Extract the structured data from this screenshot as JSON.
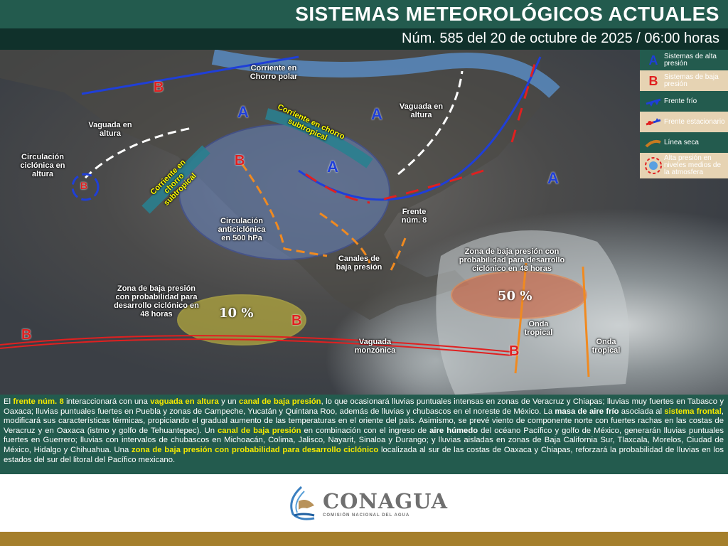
{
  "header": {
    "title": "SISTEMAS METEOROLÓGICOS ACTUALES",
    "subtitle": "Núm. 585 del 20 de octubre de 2025 / 06:00 horas"
  },
  "legend": [
    {
      "symbol": "A",
      "label": "Sistemas de alta presión",
      "color": "#1f3fd8"
    },
    {
      "symbol": "B",
      "label": "Sistemas de baja presión",
      "color": "#e02020"
    },
    {
      "symbol": "frente-frio-icon",
      "label": "Frente frío"
    },
    {
      "symbol": "frente-estacionario-icon",
      "label": "Frente estacionario"
    },
    {
      "symbol": "linea-seca-icon",
      "label": "Línea seca"
    },
    {
      "symbol": "A",
      "label": "Alta presión en niveles medios de la atmosfera"
    }
  ],
  "map": {
    "labels": {
      "chorro_polar": "Corriente en Chorro polar",
      "vaguada_w": "Vaguada en altura",
      "vaguada_e": "Vaguada en altura",
      "circ_ciclonica": "Circulación ciclónica en altura",
      "chorro_sub_w": "Corriente en chorro subtropical",
      "chorro_sub_e": "Corriente en chorro subtropical",
      "anticiclonica": "Circulación anticiclónica en 500 hPa",
      "frente": "Frente núm. 8",
      "canales": "Canales de baja presión",
      "zona_w": "Zona de baja presión con probabilidad para desarrollo ciclónico en 48 horas",
      "zona_e": "Zona de baja presión con probabilidad para desarrollo ciclónico en 48 horas",
      "pct_w": "10 %",
      "pct_e": "50 %",
      "vaguada_monz": "Vaguada monzónica",
      "onda1": "Onda tropical",
      "onda2": "Onda tropical",
      "A": "A",
      "B": "B"
    }
  },
  "bulletin": {
    "p1": "El ",
    "h1": "frente núm. 8",
    "p2": " interaccionará con una ",
    "h2": "vaguada en altura",
    "p3": " y un ",
    "h3": "canal de baja presión",
    "p4": ", lo que ocasionará lluvias puntuales intensas en zonas de Veracruz y Chiapas; lluvias muy fuertes en Tabasco y Oaxaca; lluvias puntuales fuertes en Puebla y zonas de Campeche, Yucatán y Quintana Roo, además de lluvias y chubascos en el noreste de México. La ",
    "s1": "masa de aire frío",
    "p5": " asociada al ",
    "h4": "sistema frontal",
    "p6": ", modificará sus características térmicas, propiciando el gradual aumento de las temperaturas en el oriente del país. Asimismo, se prevé viento de componente norte con fuertes rachas en las costas de Veracruz y en Oaxaca (istmo y golfo de Tehuantepec). Un ",
    "h5": "canal de baja presión",
    "p7": " en combinación con el ingreso de ",
    "s2": "aire húmedo",
    "p8": " del océano Pacífico y golfo de México, generarán lluvias puntuales fuertes en Guerrero; lluvias con intervalos de chubascos en Michoacán, Colima, Jalisco, Nayarit, Sinaloa y Durango; y lluvias aisladas en zonas de Baja California Sur, Tlaxcala, Morelos, Ciudad de México, Hidalgo y Chihuahua. Una ",
    "h6": "zona de baja presión con probabilidad para desarrollo ciclónico",
    "p9": " localizada al sur de las costas de Oaxaca y Chiapas, reforzará la probabilidad de lluvias en los estados del sur del litoral del Pacífico mexicano."
  },
  "footer": {
    "logo_name": "CONAGUA",
    "logo_sub": "COMISIÓN NACIONAL DEL AGUA"
  }
}
